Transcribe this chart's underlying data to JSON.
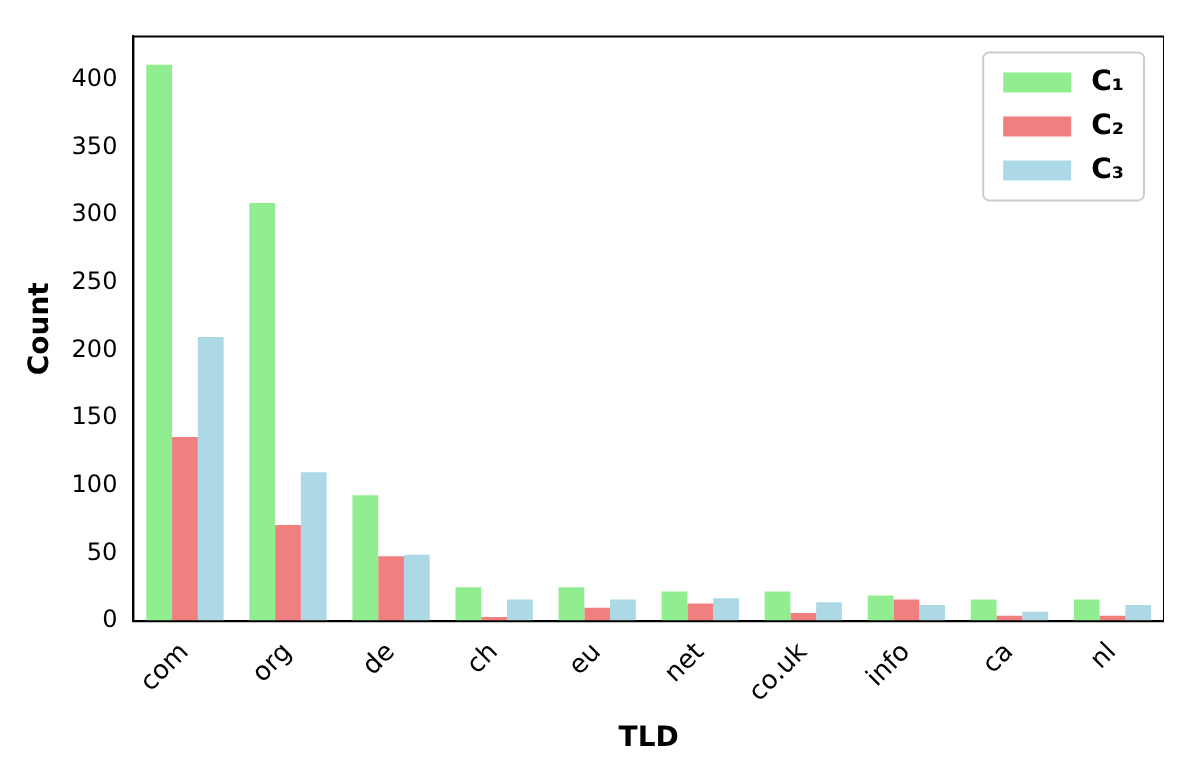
{
  "chart_data": {
    "type": "bar",
    "xlabel": "TLD",
    "ylabel": "Count",
    "categories": [
      "com",
      "org",
      "de",
      "ch",
      "eu",
      "net",
      "co.uk",
      "info",
      "ca",
      "nl"
    ],
    "series": [
      {
        "name": "C₁",
        "color": "#90ee90",
        "values": [
          411,
          309,
          93,
          25,
          25,
          22,
          22,
          19,
          16,
          16
        ]
      },
      {
        "name": "C₂",
        "color": "#f08080",
        "values": [
          136,
          71,
          48,
          3,
          10,
          13,
          6,
          16,
          4,
          4
        ]
      },
      {
        "name": "C₃",
        "color": "#add8e6",
        "values": [
          210,
          110,
          49,
          16,
          16,
          17,
          14,
          12,
          7,
          12
        ]
      }
    ],
    "ylim": [
      0,
      432
    ],
    "yticks": [
      0,
      50,
      100,
      150,
      200,
      250,
      300,
      350,
      400
    ],
    "grid": false,
    "legend": "top right"
  }
}
